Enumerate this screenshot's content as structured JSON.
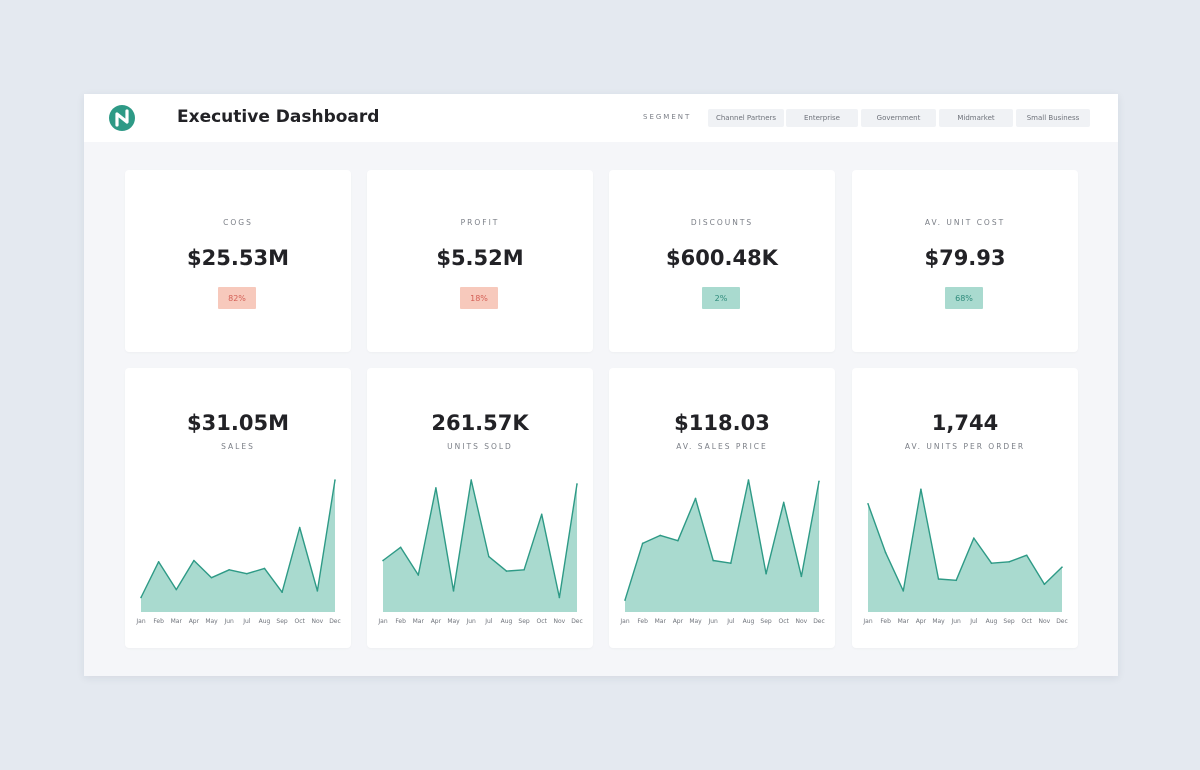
{
  "header": {
    "title": "Executive Dashboard",
    "segment_label": "SEGMENT",
    "segments": [
      "Channel Partners",
      "Enterprise",
      "Government",
      "Midmarket",
      "Small Business"
    ]
  },
  "kpis": [
    {
      "label": "COGS",
      "value": "$25.53M",
      "badge": "82%",
      "trend": "negative"
    },
    {
      "label": "PROFIT",
      "value": "$5.52M",
      "badge": "18%",
      "trend": "negative"
    },
    {
      "label": "DISCOUNTS",
      "value": "$600.48K",
      "badge": "2%",
      "trend": "positive"
    },
    {
      "label": "AV. UNIT COST",
      "value": "$79.93",
      "badge": "68%",
      "trend": "positive"
    }
  ],
  "colors": {
    "accent": "#2e9a86",
    "area_fill": "#a9dacf",
    "negative_badge": "#f7c9bc",
    "positive_badge": "#a9dacf"
  },
  "chart_data": [
    {
      "type": "area",
      "title": "SALES",
      "headline": "$31.05M",
      "categories": [
        "Jan",
        "Feb",
        "Mar",
        "Apr",
        "May",
        "Jun",
        "Jul",
        "Aug",
        "Sep",
        "Oct",
        "Nov",
        "Dec"
      ],
      "values": [
        0.11,
        0.38,
        0.17,
        0.39,
        0.26,
        0.32,
        0.29,
        0.33,
        0.15,
        0.64,
        0.16,
        1.0
      ],
      "ylim": [
        0,
        1
      ]
    },
    {
      "type": "area",
      "title": "UNITS SOLD",
      "headline": "261.57K",
      "categories": [
        "Jan",
        "Feb",
        "Mar",
        "Apr",
        "May",
        "Jun",
        "Jul",
        "Aug",
        "Sep",
        "Oct",
        "Nov",
        "Dec"
      ],
      "values": [
        0.39,
        0.49,
        0.28,
        0.94,
        0.16,
        1.0,
        0.42,
        0.31,
        0.32,
        0.74,
        0.11,
        0.97
      ],
      "ylim": [
        0,
        1
      ]
    },
    {
      "type": "area",
      "title": "AV. SALES PRICE",
      "headline": "$118.03",
      "categories": [
        "Jan",
        "Feb",
        "Mar",
        "Apr",
        "May",
        "Jun",
        "Jul",
        "Aug",
        "Sep",
        "Oct",
        "Nov",
        "Dec"
      ],
      "values": [
        0.09,
        0.52,
        0.58,
        0.54,
        0.86,
        0.39,
        0.37,
        1.0,
        0.29,
        0.83,
        0.27,
        0.99
      ],
      "ylim": [
        0,
        1
      ]
    },
    {
      "type": "area",
      "title": "AV. UNITS PER ORDER",
      "headline": "1,744",
      "categories": [
        "Jan",
        "Feb",
        "Mar",
        "Apr",
        "May",
        "Jun",
        "Jul",
        "Aug",
        "Sep",
        "Oct",
        "Nov",
        "Dec"
      ],
      "values": [
        0.82,
        0.45,
        0.16,
        0.93,
        0.25,
        0.24,
        0.56,
        0.37,
        0.38,
        0.43,
        0.21,
        0.34
      ],
      "ylim": [
        0,
        1
      ]
    }
  ]
}
